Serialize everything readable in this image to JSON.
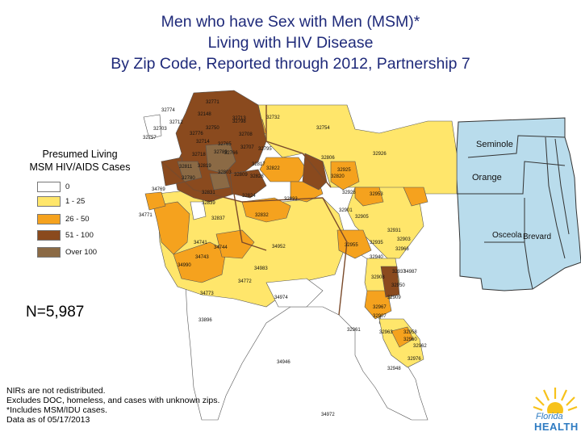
{
  "title": {
    "line1": "Men who have Sex with Men (MSM)*",
    "line2": "Living with HIV Disease",
    "line3": "By Zip Code, Reported through 2012, Partnership 7"
  },
  "legend": {
    "title_line1": "Presumed Living",
    "title_line2": "MSM HIV/AIDS Cases",
    "items": [
      {
        "label": "0",
        "color": "#ffffff"
      },
      {
        "label": "1 - 25",
        "color": "#ffe66b"
      },
      {
        "label": "26 - 50",
        "color": "#f5a21e"
      },
      {
        "label": "51 - 100",
        "color": "#8a4a1e"
      },
      {
        "label": "Over 100",
        "color": "#8b6a45"
      }
    ]
  },
  "count_label": "N=5,987",
  "notes": [
    "NIRs are not redistributed.",
    "Excludes DOC, homeless, and cases with unknown zips.",
    "*Includes MSM/IDU cases.",
    "Data as of 05/17/2013"
  ],
  "inset": {
    "color": "#b9dcec",
    "counties": [
      "Seminole",
      "Orange",
      "Osceola",
      "Brevard"
    ]
  },
  "logo": {
    "line1": "Florida",
    "line2": "HEALTH"
  },
  "zip_labels": [
    "32771",
    "32774",
    "32148",
    "32712",
    "32713",
    "32732",
    "32798",
    "32776",
    "32703",
    "32750",
    "32754",
    "32757",
    "32714",
    "32707",
    "32765",
    "32718",
    "32819",
    "32789",
    "32766",
    "32708",
    "32795",
    "32806",
    "32780",
    "32803",
    "32809",
    "32811",
    "32822",
    "32817",
    "32828",
    "32831",
    "32820",
    "32839",
    "32832",
    "32833",
    "32824",
    "32837",
    "32926",
    "32926",
    "32955",
    "34741",
    "34744",
    "34743",
    "34769",
    "34771",
    "34772",
    "34773",
    "32940",
    "32935",
    "32901",
    "32905",
    "32953",
    "32925",
    "32931",
    "32937",
    "32907",
    "32908",
    "32909",
    "32958",
    "32976",
    "32948",
    "34972",
    "34974",
    "34952",
    "32950",
    "32967",
    "32903",
    "32966",
    "32963",
    "34946",
    "32961",
    "32962",
    "32960",
    "33896",
    "34983",
    "34987",
    "34990"
  ]
}
